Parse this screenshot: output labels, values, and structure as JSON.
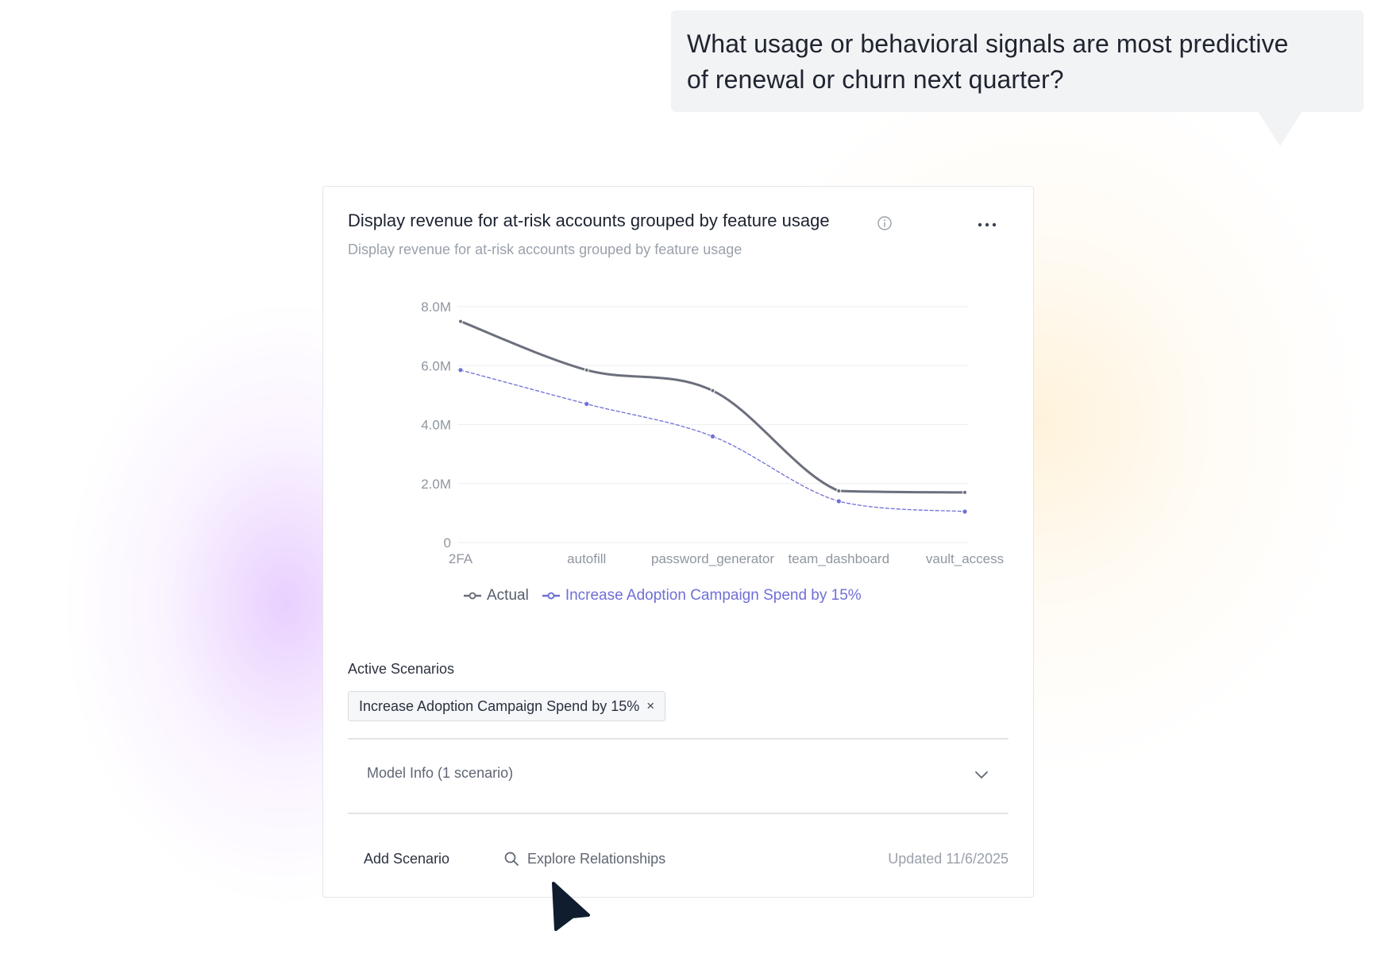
{
  "prompt_bubble": {
    "line1": "What usage or behavioral signals are most predictive",
    "line2": "of renewal or churn next quarter?"
  },
  "card": {
    "title": "Display revenue for at-risk accounts grouped by feature usage",
    "subtitle": "Display revenue for at-risk accounts grouped by feature usage",
    "info_icon": "info-circle-icon",
    "more_icon": "more-horizontal-icon"
  },
  "colors": {
    "actual": "#6b6f7c",
    "scenario": "#6f6fd8",
    "grid": "#eceef1",
    "axis_text": "#8f96a0"
  },
  "chart_data": {
    "type": "line",
    "title": "",
    "xlabel": "",
    "ylabel": "",
    "categories": [
      "2FA",
      "autofill",
      "password_generator",
      "team_dashboard",
      "vault_access"
    ],
    "ylim": [
      0,
      8000000
    ],
    "yticks": [
      {
        "value": 0,
        "label": "0"
      },
      {
        "value": 2000000,
        "label": "2.0M"
      },
      {
        "value": 4000000,
        "label": "4.0M"
      },
      {
        "value": 6000000,
        "label": "6.0M"
      },
      {
        "value": 8000000,
        "label": "8.0M"
      }
    ],
    "grid": true,
    "legend_position": "bottom",
    "series": [
      {
        "name": "Actual",
        "values": [
          7500000,
          5850000,
          5150000,
          1750000,
          1700000
        ],
        "style": "solid"
      },
      {
        "name": "Increase Adoption Campaign Spend by 15%",
        "values": [
          5850000,
          4700000,
          3600000,
          1400000,
          1050000
        ],
        "style": "dashed"
      }
    ]
  },
  "active_scenarios": {
    "label": "Active Scenarios",
    "items": [
      {
        "label": "Increase Adoption Campaign Spend by 15%",
        "remove": "×"
      }
    ]
  },
  "model_info": {
    "label": "Model Info (1 scenario)",
    "icon": "chevron-down-icon"
  },
  "footer": {
    "add_scenario": "Add Scenario",
    "explore": "Explore Relationships",
    "explore_icon": "search-icon",
    "updated": "Updated 11/6/2025"
  }
}
